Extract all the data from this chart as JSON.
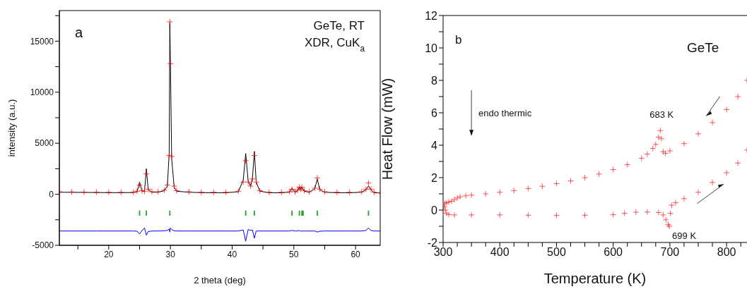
{
  "chart_data": [
    {
      "type": "scatter",
      "xlabel": "2 theta (deg)",
      "ylabel": "intensity (a.u.)",
      "annotations": [
        "a",
        "GeTe, RT",
        "XDR, CuK$_{a}$"
      ],
      "x": [
        12,
        14,
        16,
        18,
        20,
        22,
        24,
        24.6,
        25.0,
        25.4,
        25.8,
        26.1,
        26.4,
        27,
        28,
        29,
        29.5,
        29.8,
        29.9,
        30.0,
        30.2,
        30.6,
        31,
        33,
        35,
        37,
        39,
        41,
        41.8,
        42.2,
        42.6,
        43.0,
        43.3,
        43.6,
        43.9,
        44.5,
        46,
        48,
        49.3,
        49.7,
        50.2,
        50.6,
        50.9,
        51.1,
        51.3,
        51.7,
        52.5,
        53.4,
        53.8,
        54.2,
        55,
        57,
        59,
        61,
        61.7,
        62.1,
        62.5,
        63,
        64
      ],
      "series": [
        {
          "type": "scatter",
          "marker": "cross",
          "color": "#ff0000",
          "values": [
            250,
            230,
            220,
            210,
            200,
            200,
            210,
            300,
            900,
            350,
            300,
            2000,
            500,
            250,
            250,
            400,
            900,
            3800,
            16900,
            12800,
            3700,
            800,
            350,
            250,
            200,
            200,
            200,
            300,
            1200,
            3300,
            1200,
            800,
            1500,
            3800,
            1200,
            350,
            200,
            200,
            250,
            500,
            250,
            400,
            700,
            500,
            700,
            350,
            250,
            600,
            1600,
            500,
            250,
            200,
            200,
            250,
            500,
            1100,
            500,
            200,
            150
          ]
        },
        {
          "type": "line",
          "color": "#000000",
          "values": [
            200,
            190,
            180,
            170,
            160,
            160,
            170,
            250,
            1200,
            300,
            300,
            2500,
            450,
            200,
            200,
            350,
            800,
            4000,
            16800,
            13000,
            3500,
            700,
            300,
            200,
            160,
            150,
            150,
            250,
            1400,
            4000,
            1300,
            800,
            1600,
            4200,
            1200,
            300,
            150,
            150,
            200,
            600,
            200,
            350,
            700,
            450,
            700,
            300,
            200,
            550,
            1500,
            450,
            200,
            150,
            150,
            200,
            450,
            800,
            450,
            150,
            120
          ]
        },
        {
          "type": "line",
          "color": "#0000ff",
          "values": [
            -3600,
            -3600,
            -3600,
            -3600,
            -3600,
            -3600,
            -3600,
            -3620,
            -3900,
            -3550,
            -3300,
            -4000,
            -3650,
            -3600,
            -3600,
            -3580,
            -3550,
            -3400,
            -3700,
            -3300,
            -3450,
            -3580,
            -3600,
            -3600,
            -3600,
            -3600,
            -3600,
            -3600,
            -3500,
            -4600,
            -3450,
            -3550,
            -3500,
            -4300,
            -3600,
            -3600,
            -3600,
            -3600,
            -3600,
            -3550,
            -3600,
            -3600,
            -3550,
            -3620,
            -3600,
            -3600,
            -3600,
            -3600,
            -3700,
            -3620,
            -3600,
            -3600,
            -3600,
            -3600,
            -3550,
            -3300,
            -3550,
            -3600,
            -3600
          ]
        },
        {
          "type": "bar",
          "color": "#2ca02c",
          "x": [
            25.0,
            26.1,
            29.9,
            42.2,
            43.6,
            49.7,
            50.9,
            51.3,
            51.5,
            53.8,
            62.1
          ],
          "base": [
            -2100,
            -2100,
            -2100,
            -2100,
            -2100,
            -2100,
            -2100,
            -2100,
            -2100,
            -2100,
            -2100
          ],
          "values": [
            500,
            500,
            500,
            500,
            500,
            500,
            500,
            500,
            500,
            500,
            500
          ]
        }
      ],
      "xlim": [
        12,
        64
      ],
      "xticks": [
        {
          "value": 15,
          "label": null
        },
        20,
        {
          "value": 25,
          "label": null
        },
        30,
        {
          "value": 35,
          "label": null
        },
        40,
        {
          "value": 45,
          "label": null
        },
        50,
        {
          "value": 55,
          "label": null
        },
        60
      ],
      "ylim": [
        -5000,
        18000
      ],
      "yticks": [
        -5000,
        {
          "value": -2500,
          "label": null
        },
        0,
        {
          "value": 2500,
          "label": null
        },
        5000,
        {
          "value": 7500,
          "label": null
        },
        10000,
        {
          "value": 12500,
          "label": null
        },
        15000,
        {
          "value": 17500,
          "label": null
        }
      ]
    },
    {
      "type": "scatter",
      "xlabel": "Temperature (K)",
      "ylabel": "Heat Flow (mW)",
      "annotations": [
        "b",
        "GeTe",
        "endo thermic",
        {
          "text": "683 K",
          "x": 683,
          "y": 4.9
        },
        {
          "text": "699 K",
          "x": 699,
          "y": -1.0
        }
      ],
      "series": [
        {
          "type": "scatter",
          "marker": "cross",
          "color": "#ff2020",
          "x": [
            303,
            306,
            310,
            315,
            320,
            325,
            330,
            340,
            350,
            375,
            400,
            425,
            450,
            475,
            500,
            525,
            550,
            575,
            600,
            625,
            650,
            660,
            670,
            675,
            680,
            683,
            685,
            688,
            692,
            700,
            725,
            750,
            775,
            800,
            820,
            836
          ],
          "values": [
            0.4,
            0.45,
            0.5,
            0.55,
            0.65,
            0.75,
            0.82,
            0.88,
            0.92,
            1.0,
            1.1,
            1.2,
            1.33,
            1.47,
            1.63,
            1.8,
            2.0,
            2.22,
            2.5,
            2.8,
            3.2,
            3.45,
            3.8,
            4.05,
            4.5,
            4.9,
            4.4,
            3.6,
            3.5,
            3.65,
            4.1,
            4.7,
            5.4,
            6.2,
            7.0,
            8.0
          ]
        },
        {
          "type": "scatter",
          "marker": "cross",
          "color": "#ff2020",
          "x": [
            302,
            304,
            306,
            310,
            320,
            350,
            400,
            450,
            500,
            550,
            600,
            620,
            640,
            660,
            680,
            688,
            693,
            697,
            699,
            701,
            703,
            710,
            725,
            750,
            775,
            800,
            820,
            836
          ],
          "values": [
            0.2,
            0.0,
            -0.2,
            -0.28,
            -0.3,
            -0.3,
            -0.3,
            -0.32,
            -0.33,
            -0.32,
            -0.28,
            -0.2,
            -0.13,
            -0.12,
            -0.15,
            -0.3,
            -0.6,
            -0.9,
            -1.0,
            -0.2,
            0.3,
            0.45,
            0.7,
            1.1,
            1.7,
            2.3,
            2.9,
            3.7
          ]
        }
      ],
      "xlim": [
        300,
        836
      ],
      "xticks": [
        300,
        {
          "value": 325,
          "label": null
        },
        {
          "value": 350,
          "label": null
        },
        {
          "value": 375,
          "label": null
        },
        400,
        {
          "value": 425,
          "label": null
        },
        {
          "value": 450,
          "label": null
        },
        {
          "value": 475,
          "label": null
        },
        500,
        {
          "value": 525,
          "label": null
        },
        {
          "value": 550,
          "label": null
        },
        {
          "value": 575,
          "label": null
        },
        600,
        {
          "value": 625,
          "label": null
        },
        {
          "value": 650,
          "label": null
        },
        {
          "value": 675,
          "label": null
        },
        700,
        {
          "value": 725,
          "label": null
        },
        {
          "value": 750,
          "label": null
        },
        {
          "value": 775,
          "label": null
        },
        800,
        {
          "value": 825,
          "label": null
        }
      ],
      "ylim": [
        -2,
        12
      ],
      "yticks": [
        -2,
        {
          "value": -1,
          "label": null
        },
        0,
        {
          "value": 1,
          "label": null
        },
        2,
        {
          "value": 3,
          "label": null
        },
        4,
        {
          "value": 5,
          "label": null
        },
        6,
        {
          "value": 7,
          "label": null
        },
        8,
        {
          "value": 9,
          "label": null
        },
        10,
        {
          "value": 11,
          "label": null
        },
        12
      ]
    }
  ]
}
